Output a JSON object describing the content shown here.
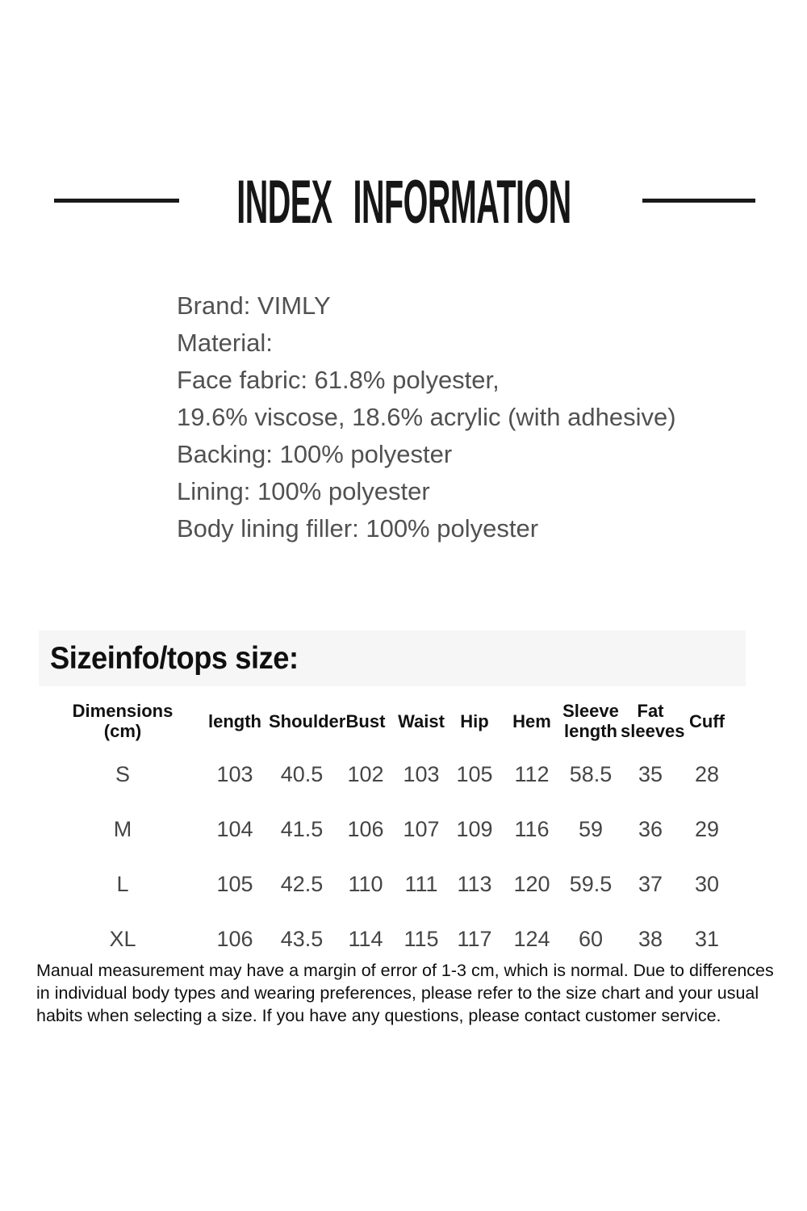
{
  "header": {
    "title": "INDEX INFORMATION"
  },
  "materials": {
    "lines": [
      "Brand: VIMLY",
      "Material:",
      "Face fabric: 61.8% polyester,",
      "19.6% viscose, 18.6% acrylic (with adhesive)",
      "Backing: 100% polyester",
      "Lining: 100% polyester",
      "Body lining filler: 100% polyester"
    ]
  },
  "size_section": {
    "heading": "Sizeinfo/tops size:",
    "table": {
      "columns": [
        {
          "lines": [
            "Dimensions",
            "(cm)"
          ]
        },
        {
          "lines": [
            "length"
          ]
        },
        {
          "lines": [
            "Shoulder"
          ]
        },
        {
          "lines": [
            "Bust"
          ]
        },
        {
          "lines": [
            "Waist"
          ]
        },
        {
          "lines": [
            "Hip"
          ]
        },
        {
          "lines": [
            "Hem"
          ]
        },
        {
          "lines": [
            "Sleeve",
            "length"
          ]
        },
        {
          "lines": [
            "Fat",
            "sleeves"
          ]
        },
        {
          "lines": [
            "Cuff"
          ]
        }
      ],
      "rows": [
        {
          "size": "S",
          "values": [
            "103",
            "40.5",
            "102",
            "103",
            "105",
            "112",
            "58.5",
            "35",
            "28"
          ]
        },
        {
          "size": "M",
          "values": [
            "104",
            "41.5",
            "106",
            "107",
            "109",
            "116",
            "59",
            "36",
            "29"
          ]
        },
        {
          "size": "L",
          "values": [
            "105",
            "42.5",
            "110",
            "111",
            "113",
            "120",
            "59.5",
            "37",
            "30"
          ]
        },
        {
          "size": "XL",
          "values": [
            "106",
            "43.5",
            "114",
            "115",
            "117",
            "124",
            "60",
            "38",
            "31"
          ]
        }
      ]
    },
    "note": "Manual measurement may have a margin of error of 1-3 cm, which is normal. Due to differences in individual body types and wearing preferences, please refer to the size chart and your usual habits when selecting a size. If you have any questions, please contact customer service."
  },
  "colors": {
    "text_primary": "#161616",
    "text_secondary": "#515151",
    "table_text": "#454545",
    "heading_bar_bg": "#f6f6f6",
    "rule": "#1a1a1a"
  }
}
